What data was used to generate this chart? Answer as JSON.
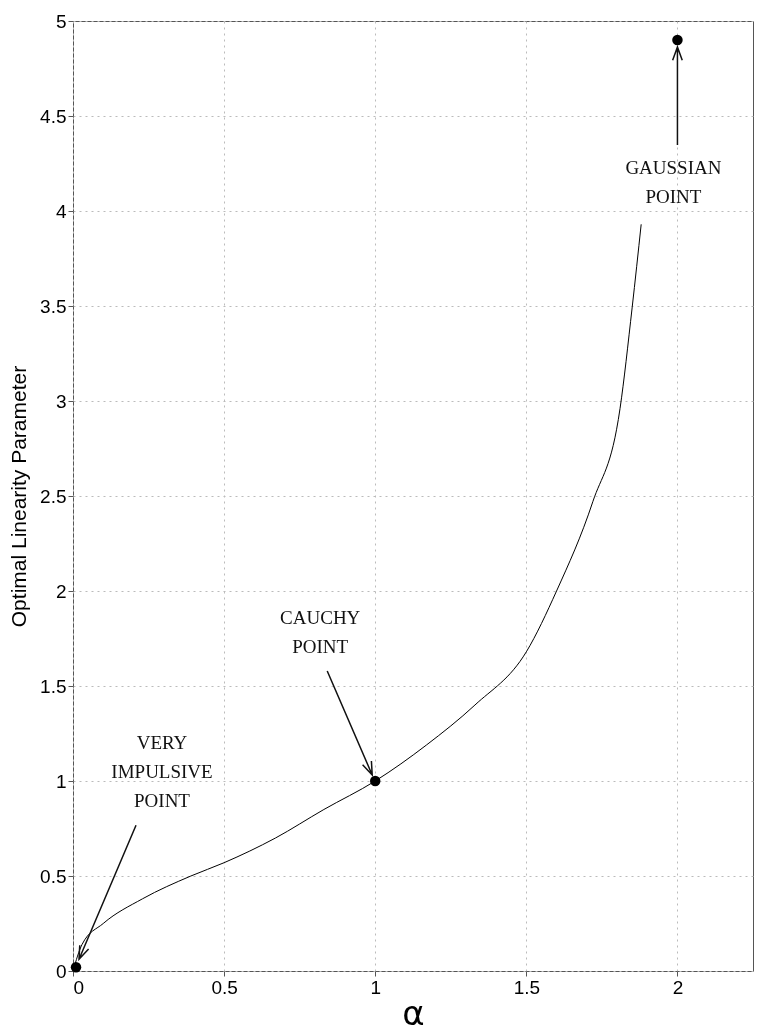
{
  "chart_data": {
    "type": "line",
    "xlabel": "α",
    "ylabel": "Optimal Linearity Parameter",
    "xlim": [
      0,
      2.25
    ],
    "ylim": [
      0,
      5
    ],
    "xticks": [
      0,
      0.5,
      1,
      1.5,
      2
    ],
    "yticks": [
      0,
      0.5,
      1,
      1.5,
      2,
      2.5,
      3,
      3.5,
      4,
      4.5,
      5
    ],
    "grid": true,
    "series": [
      {
        "color": "#000000",
        "x": [
          0,
          0.03,
          0.1,
          0.23,
          0.39,
          0.5,
          0.67,
          0.83,
          1,
          1.17,
          1.33,
          1.5,
          1.6,
          1.72,
          1.81,
          1.85,
          1.88
        ],
        "values": [
          0,
          0.14,
          0.25,
          0.38,
          0.5,
          0.57,
          0.7,
          0.85,
          1,
          1.19,
          1.4,
          1.68,
          2,
          2.47,
          2.96,
          3.49,
          3.93
        ]
      },
      {
        "type": "scatter",
        "color": "#000000",
        "marker": "circle",
        "x": [
          0.01,
          1,
          2
        ],
        "values": [
          0.02,
          1,
          4.9
        ]
      }
    ],
    "annotations": [
      {
        "text": "VERY IMPULSIVE POINT",
        "x": 0.01,
        "y": 0.02
      },
      {
        "text": "CAUCHY POINT",
        "x": 1,
        "y": 1
      },
      {
        "text": "GAUSSIAN POINT",
        "x": 2,
        "y": 4.9
      }
    ]
  }
}
